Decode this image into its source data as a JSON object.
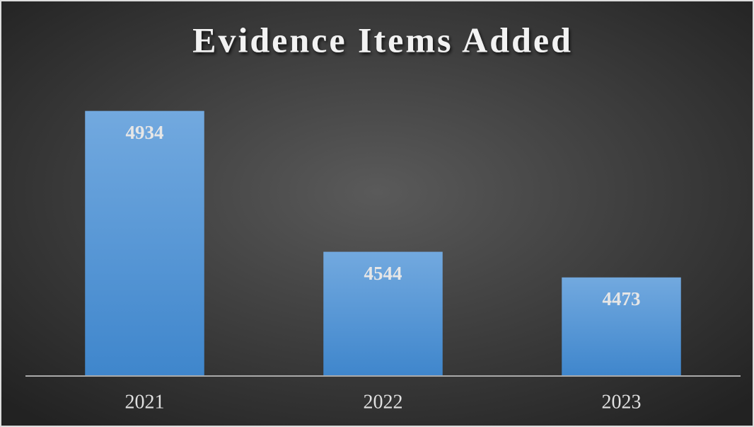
{
  "chart_data": {
    "type": "bar",
    "title": "Evidence Items Added",
    "categories": [
      "2021",
      "2022",
      "2023"
    ],
    "values": [
      4934,
      4544,
      4473
    ],
    "color": "#5b9bd5",
    "ylim": [
      4200,
      5000
    ]
  }
}
